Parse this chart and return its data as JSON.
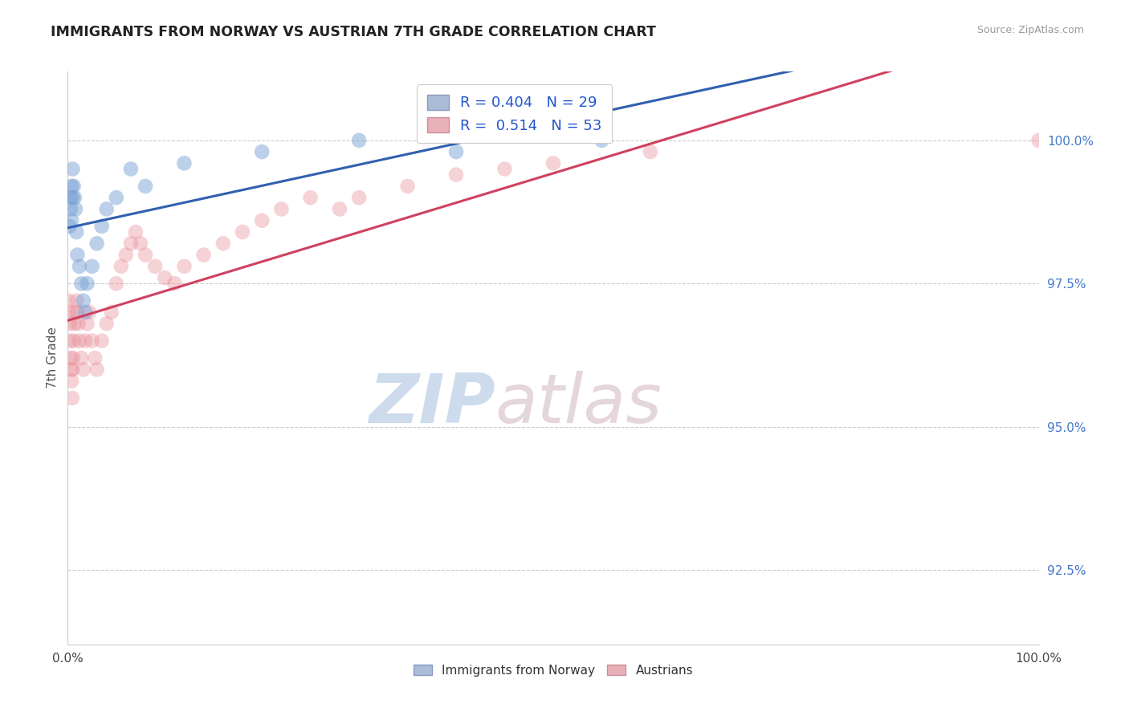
{
  "title": "IMMIGRANTS FROM NORWAY VS AUSTRIAN 7TH GRADE CORRELATION CHART",
  "source": "Source: ZipAtlas.com",
  "ylabel": "7th Grade",
  "y_ticks": [
    92.5,
    95.0,
    97.5,
    100.0
  ],
  "y_tick_labels": [
    "92.5%",
    "95.0%",
    "97.5%",
    "100.0%"
  ],
  "xlim": [
    0.0,
    100.0
  ],
  "ylim": [
    91.2,
    101.2
  ],
  "norway_color": "#7ba3d4",
  "austria_color": "#e8909a",
  "norway_trend_color": "#3060b0",
  "austria_trend_color": "#d04060",
  "watermark_zip": "ZIP",
  "watermark_atlas": "atlas",
  "watermark_color_zip": "#b8cfe8",
  "watermark_color_atlas": "#c8b8c0",
  "legend_label1": "Immigrants from Norway",
  "legend_label2": "Austrians",
  "legend_blue_r": "R = 0.404",
  "legend_blue_n": "N = 29",
  "legend_pink_r": "R =  0.514",
  "legend_pink_n": "N = 53",
  "norway_x": [
    0.2,
    0.3,
    0.3,
    0.4,
    0.4,
    0.5,
    0.5,
    0.6,
    0.7,
    0.8,
    0.9,
    1.0,
    1.2,
    1.4,
    1.6,
    1.8,
    2.0,
    2.5,
    3.0,
    3.5,
    4.0,
    5.0,
    6.5,
    8.0,
    12.0,
    20.0,
    30.0,
    40.0,
    55.0
  ],
  "norway_y": [
    98.5,
    98.8,
    99.0,
    98.6,
    99.2,
    99.0,
    99.5,
    99.2,
    99.0,
    98.8,
    98.4,
    98.0,
    97.8,
    97.5,
    97.2,
    97.0,
    97.5,
    97.8,
    98.2,
    98.5,
    98.8,
    99.0,
    99.5,
    99.2,
    99.6,
    99.8,
    100.0,
    99.8,
    100.0
  ],
  "austria_x": [
    0.1,
    0.15,
    0.2,
    0.25,
    0.3,
    0.35,
    0.4,
    0.45,
    0.5,
    0.55,
    0.6,
    0.7,
    0.8,
    0.9,
    1.0,
    1.1,
    1.2,
    1.4,
    1.6,
    1.8,
    2.0,
    2.2,
    2.5,
    2.8,
    3.0,
    3.5,
    4.0,
    4.5,
    5.0,
    5.5,
    6.0,
    6.5,
    7.0,
    7.5,
    8.0,
    9.0,
    10.0,
    11.0,
    12.0,
    14.0,
    16.0,
    18.0,
    20.0,
    22.0,
    25.0,
    28.0,
    30.0,
    35.0,
    40.0,
    45.0,
    50.0,
    60.0,
    100.0
  ],
  "austria_y": [
    97.2,
    97.0,
    96.8,
    96.5,
    96.2,
    96.0,
    95.8,
    95.5,
    96.0,
    96.2,
    96.5,
    96.8,
    97.0,
    97.2,
    97.0,
    96.8,
    96.5,
    96.2,
    96.0,
    96.5,
    96.8,
    97.0,
    96.5,
    96.2,
    96.0,
    96.5,
    96.8,
    97.0,
    97.5,
    97.8,
    98.0,
    98.2,
    98.4,
    98.2,
    98.0,
    97.8,
    97.6,
    97.5,
    97.8,
    98.0,
    98.2,
    98.4,
    98.6,
    98.8,
    99.0,
    98.8,
    99.0,
    99.2,
    99.4,
    99.5,
    99.6,
    99.8,
    100.0
  ]
}
